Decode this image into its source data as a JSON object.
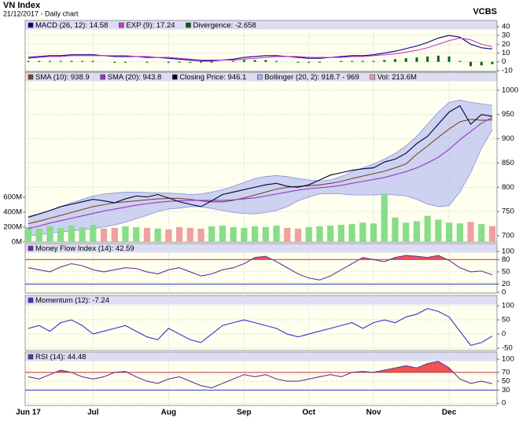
{
  "header": {
    "title": "VN Index",
    "subtitle": "21/12/2017 - Daily chart",
    "source": "VCBS"
  },
  "chart_data": [
    {
      "type": "line",
      "ylim": [
        -11,
        47
      ],
      "yticks": [
        40,
        30,
        20,
        10,
        0,
        -10
      ],
      "grid": true,
      "series": [
        {
          "name": "MACD (26, 12): 14.58",
          "color": "#000080",
          "type": "line",
          "values": [
            5,
            6,
            7,
            7,
            8,
            8,
            8,
            7,
            6,
            6,
            6,
            5,
            5,
            4,
            3,
            2,
            1,
            1,
            2,
            3,
            5,
            6,
            7,
            7,
            6,
            5,
            4,
            4,
            5,
            6,
            7,
            7,
            8,
            10,
            12,
            15,
            18,
            22,
            27,
            30,
            28,
            20,
            16,
            14.58
          ]
        },
        {
          "name": "EXP (9): 17.24",
          "color": "#cc33cc",
          "type": "line",
          "values": [
            4,
            5,
            6,
            6,
            7,
            7,
            7,
            7,
            7,
            7,
            6,
            6,
            5,
            5,
            4,
            3,
            2,
            2,
            2,
            2,
            3,
            4,
            5,
            6,
            6,
            6,
            5,
            5,
            5,
            5,
            6,
            6,
            7,
            8,
            9,
            11,
            13,
            16,
            20,
            24,
            27,
            25,
            20,
            17.24
          ]
        },
        {
          "name": "Divergence: -2.658",
          "color": "#006600",
          "type": "bar",
          "values": [
            1,
            1,
            1,
            1,
            1,
            1,
            1,
            0,
            -1,
            -1,
            0,
            -1,
            0,
            -1,
            -1,
            -1,
            -1,
            -1,
            0,
            1,
            2,
            2,
            2,
            1,
            0,
            -1,
            -1,
            -1,
            0,
            1,
            1,
            1,
            1,
            2,
            3,
            4,
            5,
            6,
            7,
            6,
            1,
            -5,
            -4,
            -2.658
          ]
        }
      ]
    },
    {
      "type": "line",
      "ylim": [
        687,
        1037
      ],
      "yticks": [
        1000,
        950,
        900,
        850,
        800,
        750,
        700
      ],
      "grid": true,
      "y2lim": [
        0,
        2274
      ],
      "y2ticks": [
        {
          "value": 600,
          "label": "600M"
        },
        {
          "value": 400,
          "label": "400M"
        },
        {
          "value": 200,
          "label": "200M"
        },
        {
          "value": 0,
          "label": "0M"
        }
      ],
      "series": [
        {
          "name": "SMA (10): 938.9",
          "color": "#7b4a2a",
          "type": "line",
          "values": [
            725,
            730,
            736,
            742,
            748,
            754,
            760,
            764,
            768,
            770,
            772,
            774,
            776,
            777,
            777,
            775,
            772,
            770,
            770,
            773,
            778,
            784,
            790,
            796,
            800,
            802,
            803,
            805,
            808,
            812,
            818,
            823,
            828,
            833,
            840,
            848,
            868,
            885,
            903,
            920,
            935,
            940,
            938,
            938.9
          ]
        },
        {
          "name": "SMA (20): 943.8",
          "color": "#9933cc",
          "type": "line",
          "values": [
            715,
            720,
            726,
            731,
            736,
            741,
            746,
            751,
            755,
            759,
            763,
            766,
            769,
            771,
            772,
            773,
            773,
            773,
            773,
            774,
            776,
            778,
            782,
            786,
            790,
            794,
            797,
            799,
            801,
            804,
            808,
            812,
            816,
            820,
            826,
            832,
            840,
            850,
            862,
            878,
            898,
            915,
            932,
            943.8
          ]
        },
        {
          "name": "Closing Price: 946.1",
          "color": "#000033",
          "type": "line",
          "values": [
            738,
            745,
            752,
            760,
            765,
            770,
            775,
            772,
            768,
            776,
            782,
            780,
            785,
            778,
            770,
            765,
            760,
            772,
            785,
            790,
            795,
            800,
            805,
            808,
            802,
            800,
            805,
            815,
            825,
            830,
            835,
            838,
            840,
            852,
            858,
            870,
            890,
            905,
            930,
            955,
            968,
            930,
            950,
            946.1
          ]
        },
        {
          "name": "Bollinger (20, 2): 918.7 - 969",
          "color": "#aab4ee",
          "type": "band",
          "upper": [
            740,
            745,
            752,
            760,
            768,
            775,
            782,
            786,
            788,
            790,
            790,
            789,
            788,
            788,
            787,
            785,
            786,
            790,
            795,
            802,
            810,
            818,
            822,
            824,
            822,
            818,
            815,
            813,
            815,
            822,
            832,
            840,
            848,
            858,
            870,
            885,
            905,
            930,
            955,
            975,
            980,
            975,
            972,
            969
          ],
          "lower": [
            700,
            702,
            705,
            708,
            710,
            712,
            715,
            718,
            722,
            728,
            735,
            742,
            750,
            755,
            757,
            760,
            760,
            756,
            752,
            748,
            746,
            745,
            748,
            752,
            760,
            772,
            780,
            786,
            787,
            786,
            784,
            784,
            784,
            785,
            784,
            782,
            775,
            765,
            760,
            762,
            790,
            830,
            880,
            918.7
          ]
        },
        {
          "name": "Vol: 213.6M",
          "color": "#f0a0a0",
          "up_color": "#88dd88",
          "type": "bar",
          "axis": "y2",
          "values": [
            200,
            180,
            210,
            190,
            220,
            200,
            230,
            180,
            190,
            210,
            200,
            190,
            180,
            170,
            200,
            190,
            180,
            210,
            220,
            200,
            190,
            210,
            200,
            220,
            190,
            180,
            200,
            210,
            220,
            230,
            240,
            260,
            250,
            650,
            330,
            260,
            280,
            350,
            300,
            260,
            250,
            270,
            240,
            213.6
          ]
        }
      ]
    },
    {
      "type": "line",
      "ylim": [
        -2,
        119
      ],
      "yticks": [
        100,
        80,
        50,
        20,
        0
      ],
      "grid": true,
      "ref_lines": [
        {
          "value": 80,
          "color": "#cc3333",
          "fill": "#ee5555"
        },
        {
          "value": 20,
          "color": "#3333cc"
        }
      ],
      "series": [
        {
          "name": "Money Flow Index (14): 42.59",
          "color": "#663399",
          "type": "line",
          "values": [
            60,
            55,
            50,
            62,
            70,
            65,
            55,
            50,
            55,
            60,
            58,
            50,
            45,
            55,
            60,
            50,
            40,
            45,
            55,
            60,
            70,
            85,
            88,
            75,
            60,
            45,
            35,
            30,
            40,
            55,
            70,
            85,
            80,
            75,
            85,
            90,
            88,
            85,
            90,
            78,
            60,
            50,
            52,
            42.59
          ]
        }
      ]
    },
    {
      "type": "line",
      "ylim": [
        -58,
        136
      ],
      "yticks": [
        100,
        50,
        0,
        -50
      ],
      "grid": true,
      "series": [
        {
          "name": "Momentum (12): -7.24",
          "color": "#3333cc",
          "type": "line",
          "values": [
            20,
            30,
            10,
            40,
            50,
            30,
            0,
            10,
            20,
            30,
            10,
            -10,
            -20,
            20,
            0,
            -20,
            -30,
            0,
            30,
            40,
            50,
            40,
            30,
            20,
            0,
            -10,
            0,
            10,
            20,
            30,
            40,
            20,
            40,
            50,
            40,
            60,
            70,
            90,
            80,
            60,
            10,
            -40,
            -30,
            -7.24
          ]
        }
      ]
    },
    {
      "type": "line",
      "ylim": [
        -5,
        116
      ],
      "yticks": [
        100,
        70,
        50,
        30,
        0
      ],
      "grid": true,
      "ref_lines": [
        {
          "value": 70,
          "color": "#cc3333",
          "fill": "#ee5555"
        },
        {
          "value": 30,
          "color": "#3333cc"
        }
      ],
      "categories": [
        "Jun 17",
        null,
        null,
        null,
        null,
        null,
        "Jul",
        null,
        null,
        null,
        null,
        null,
        null,
        "Aug",
        null,
        null,
        null,
        null,
        null,
        null,
        "Sep",
        null,
        null,
        null,
        null,
        null,
        "Oct",
        null,
        null,
        null,
        null,
        null,
        "Nov",
        null,
        null,
        null,
        null,
        null,
        null,
        "Dec",
        null,
        null,
        null,
        null
      ],
      "series": [
        {
          "name": "RSI (14): 44.48",
          "color": "#663399",
          "type": "line",
          "values": [
            60,
            55,
            65,
            75,
            70,
            60,
            55,
            60,
            70,
            72,
            60,
            50,
            45,
            55,
            60,
            50,
            40,
            35,
            45,
            55,
            65,
            60,
            65,
            55,
            50,
            50,
            55,
            60,
            65,
            60,
            70,
            72,
            70,
            75,
            80,
            85,
            80,
            90,
            95,
            80,
            55,
            45,
            50,
            44.48
          ]
        }
      ]
    }
  ]
}
